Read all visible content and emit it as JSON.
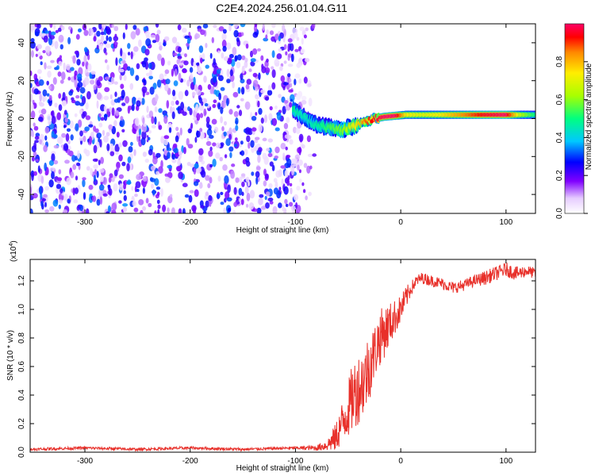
{
  "title": "C2E4.2024.256.01.04.G11",
  "chart_data": [
    {
      "type": "heatmap",
      "title": "C2E4.2024.256.01.04.G11",
      "xlabel": "Height of straight line (km)",
      "ylabel": "Frequency (Hz)",
      "xlim": [
        -352,
        128
      ],
      "ylim": [
        -50,
        50
      ],
      "xticks": [
        -300,
        -200,
        -100,
        0,
        100
      ],
      "yticks": [
        -40,
        -20,
        0,
        20,
        40
      ],
      "grid": false,
      "colorbar": {
        "label": "Normalized spectral amplitude",
        "range": [
          0,
          1
        ],
        "ticks": [
          "0.0",
          "0.2",
          "0.4",
          "0.6",
          "0.8"
        ],
        "tick_values": [
          0,
          0.2,
          0.4,
          0.6,
          0.8
        ],
        "colors": [
          "#ffffff",
          "#d9b3ff",
          "#7a00e6",
          "#0000ff",
          "#00ccff",
          "#00ff66",
          "#b3ff00",
          "#ffee00",
          "#ff8800",
          "#ff0000",
          "#ff0066"
        ]
      },
      "noise_region": {
        "x_range": [
          -352,
          -80
        ],
        "amplitude": [
          0.0,
          0.35
        ]
      },
      "signal_track": {
        "x": [
          -102,
          -95,
          -85,
          -75,
          -65,
          -55,
          -45,
          -35,
          -25,
          -15,
          -5,
          5,
          20,
          40,
          60,
          80,
          100,
          115,
          128
        ],
        "frequency": [
          5,
          2,
          -2,
          -4,
          -5,
          -6,
          -4,
          -2,
          0,
          1,
          1.5,
          2,
          2,
          2,
          2,
          2,
          2,
          2,
          2
        ],
        "amplitude": [
          0.35,
          0.3,
          0.3,
          0.35,
          0.4,
          0.45,
          0.55,
          0.7,
          0.8,
          0.85,
          0.85,
          0.6,
          0.55,
          0.6,
          0.7,
          0.8,
          0.85,
          0.5,
          0.35
        ]
      }
    },
    {
      "type": "line",
      "xlabel": "Height of straight line (km)",
      "ylabel": "SNR (10 * v/v)",
      "yscale_label": "(x10",
      "yscale_exp": "4",
      "xlim": [
        -352,
        128
      ],
      "ylim": [
        0,
        1.35
      ],
      "xticks": [
        -300,
        -200,
        -100,
        0,
        100
      ],
      "yticks": [
        0.0,
        0.2,
        0.4,
        0.6,
        0.8,
        1.0,
        1.2
      ],
      "ytick_labels": [
        "0.0",
        "0.2",
        "0.4",
        "0.6",
        "0.8",
        "1.0",
        "1.2"
      ],
      "color": "#e8302a",
      "series": [
        {
          "x": [
            -352,
            -300,
            -250,
            -200,
            -150,
            -100,
            -80,
            -70,
            -62,
            -56,
            -50,
            -45,
            -40,
            -35,
            -30,
            -25,
            -20,
            -15,
            -10,
            -5,
            0,
            5,
            10,
            15,
            20,
            30,
            40,
            50,
            60,
            70,
            80,
            90,
            100,
            110,
            120,
            128
          ],
          "y": [
            0.02,
            0.03,
            0.02,
            0.03,
            0.02,
            0.03,
            0.03,
            0.05,
            0.1,
            0.2,
            0.3,
            0.4,
            0.45,
            0.5,
            0.6,
            0.7,
            0.8,
            0.85,
            0.9,
            0.95,
            1.0,
            1.08,
            1.15,
            1.2,
            1.22,
            1.2,
            1.18,
            1.15,
            1.17,
            1.2,
            1.22,
            1.25,
            1.28,
            1.25,
            1.27,
            1.25
          ],
          "noise": [
            0.01,
            0.01,
            0.01,
            0.01,
            0.01,
            0.01,
            0.02,
            0.04,
            0.1,
            0.15,
            0.2,
            0.25,
            0.25,
            0.25,
            0.25,
            0.2,
            0.2,
            0.18,
            0.15,
            0.12,
            0.1,
            0.08,
            0.05,
            0.04,
            0.04,
            0.04,
            0.04,
            0.04,
            0.04,
            0.04,
            0.05,
            0.05,
            0.05,
            0.05,
            0.04,
            0.04
          ]
        }
      ]
    }
  ]
}
